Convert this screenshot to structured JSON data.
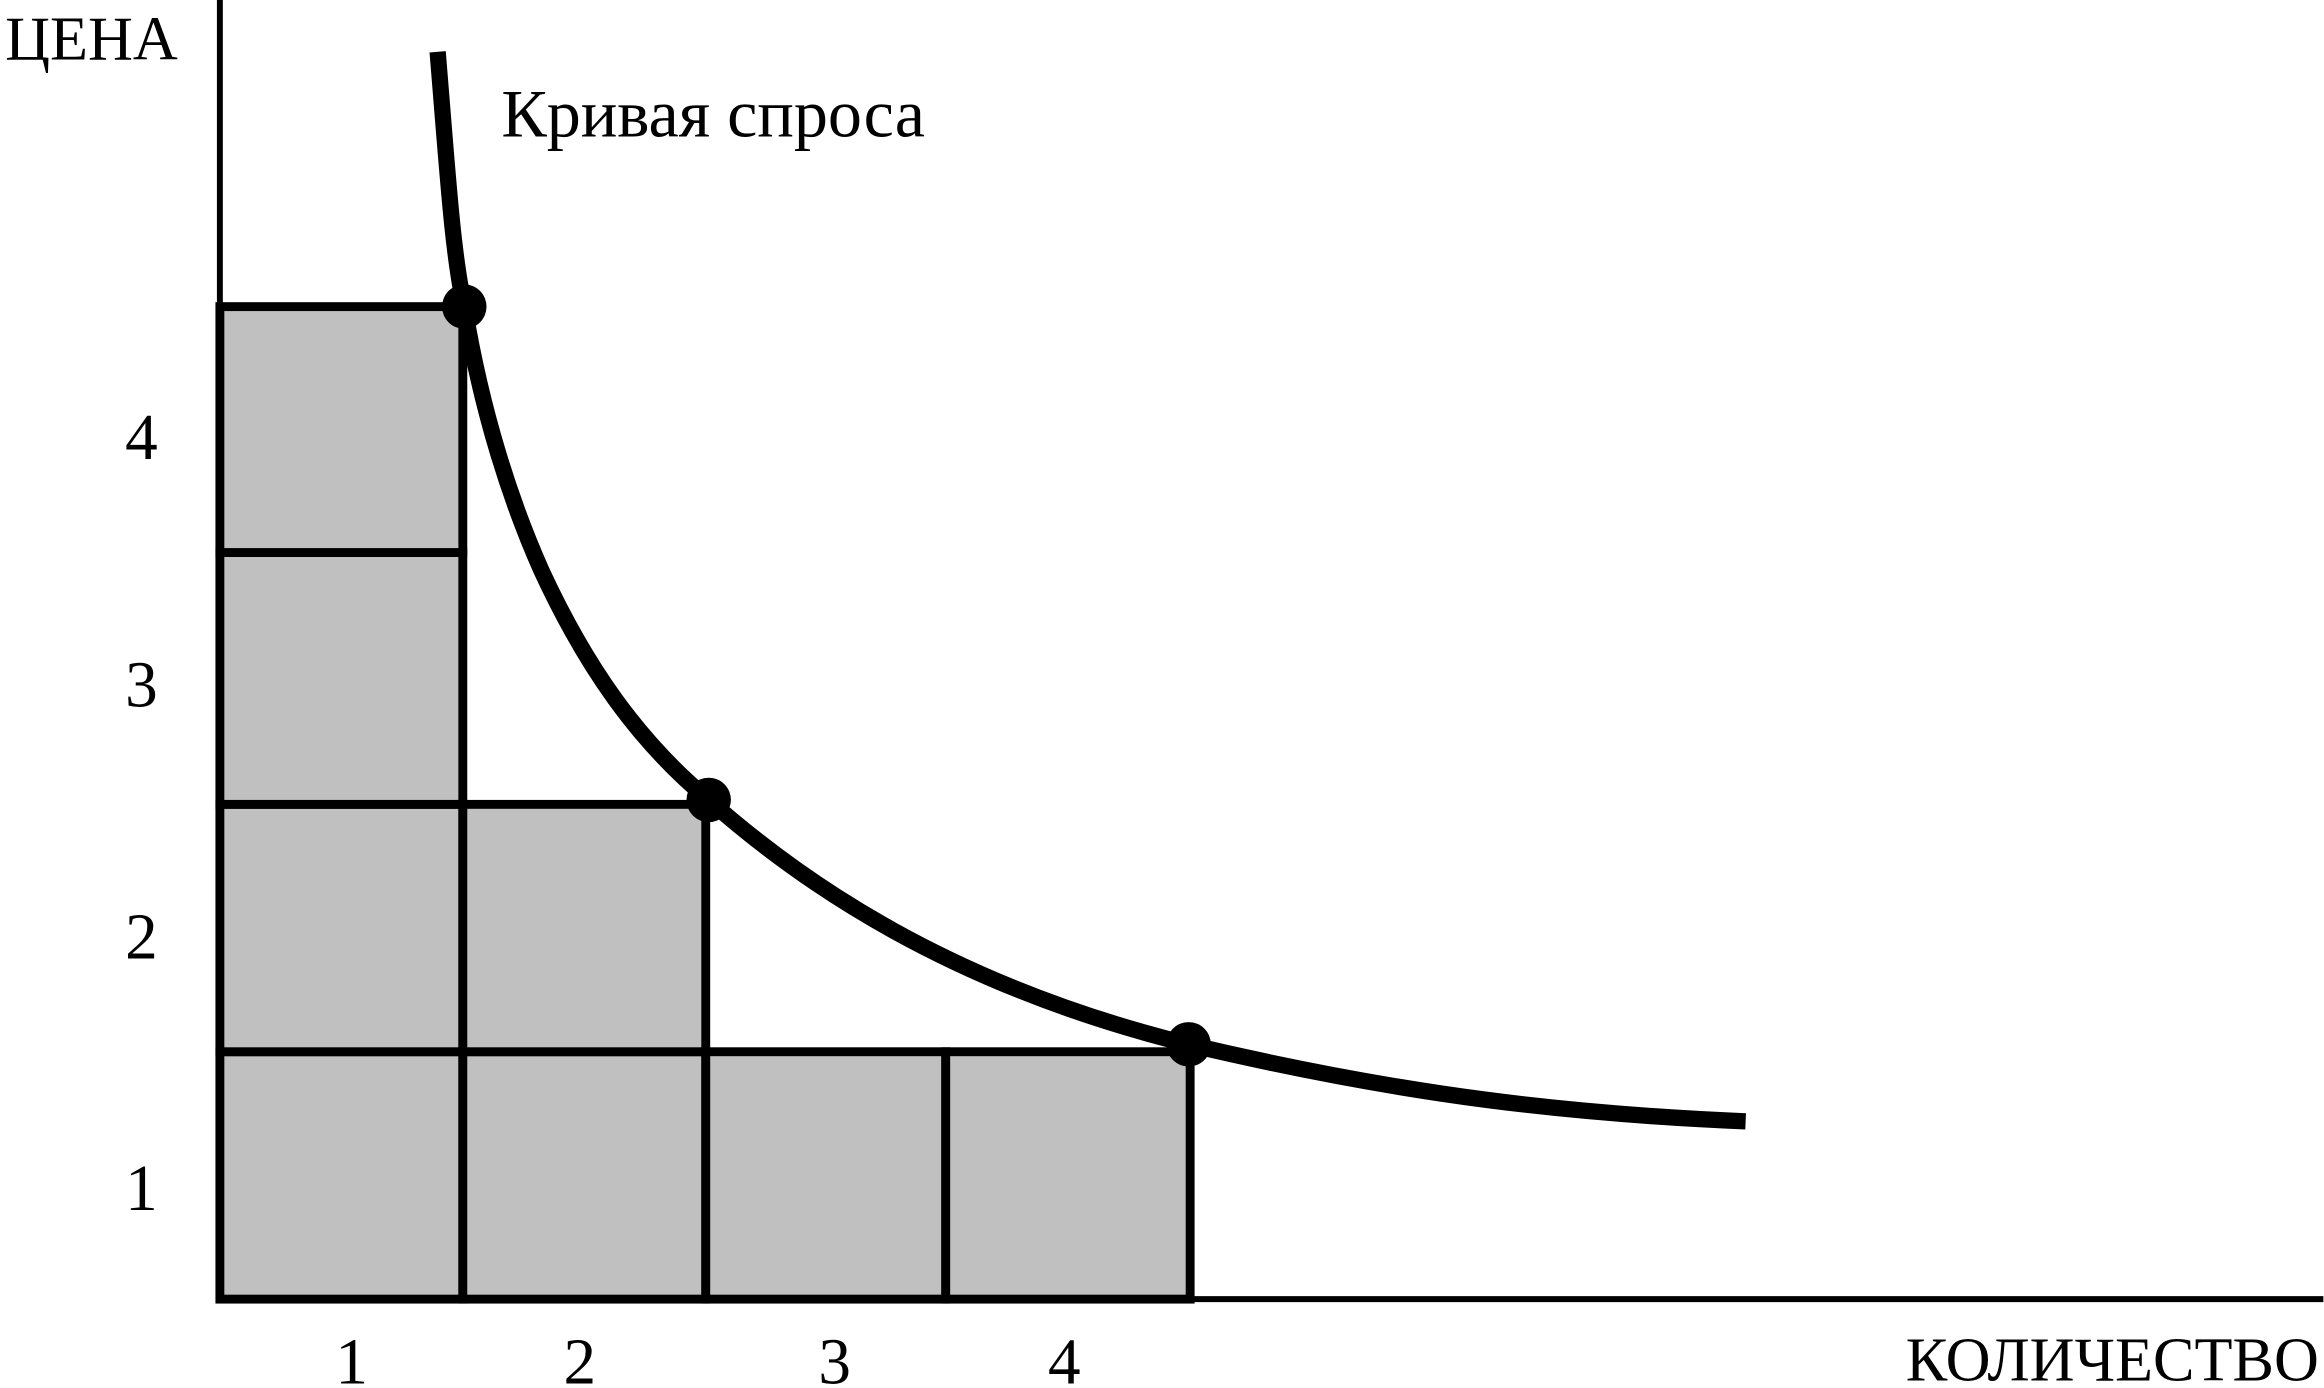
{
  "axes": {
    "y_title": "ЦЕНА",
    "x_title": "КОЛИЧЕСТВО",
    "y_labels": [
      "1",
      "2",
      "3",
      "4"
    ],
    "x_labels": [
      "1",
      "2",
      "3",
      "4"
    ]
  },
  "curve": {
    "label": "Кривая спроса"
  }
}
